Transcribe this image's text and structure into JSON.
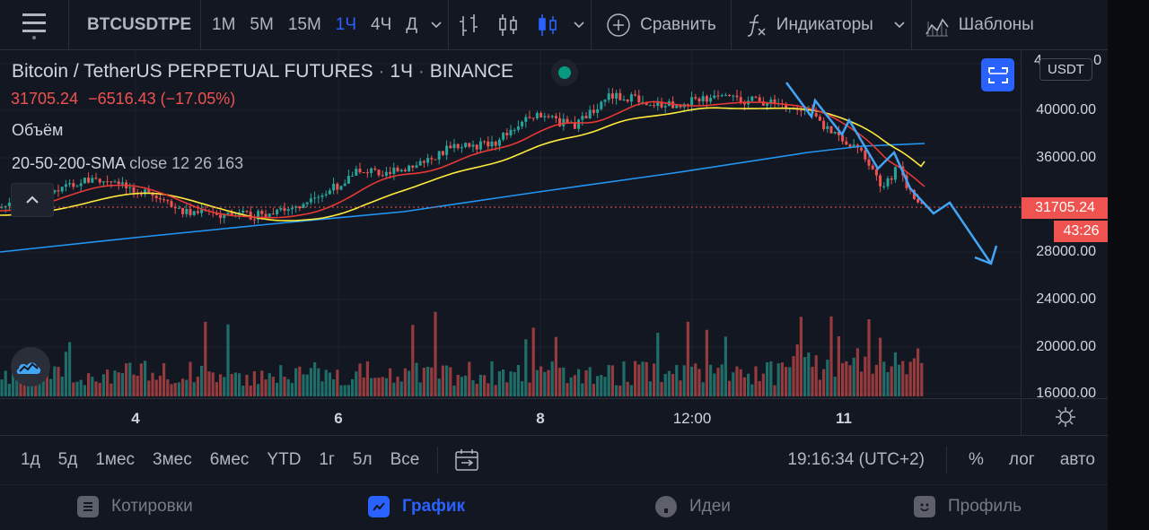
{
  "toolbar": {
    "symbol": "BTCUSDTPE",
    "timeframes": [
      "1М",
      "5М",
      "15М",
      "1Ч",
      "4Ч",
      "Д"
    ],
    "active_timeframe": "1Ч",
    "compare_label": "Сравнить",
    "indicators_label": "Индикаторы",
    "templates_label": "Шаблоны"
  },
  "legend": {
    "name": "Bitcoin / TetherUS PERPETUAL FUTURES",
    "interval": "1Ч",
    "exchange": "BINANCE",
    "dot": "·",
    "price": "31705.24",
    "change": "−6516.43 (−17.05%)",
    "volume_label": "Объём",
    "sma_name": "20-50-200-SMA",
    "sma_args": "close 12 26 163"
  },
  "price_axis": {
    "currency": "USDT",
    "ticks": [
      "40000.00",
      "36000.00",
      "28000.00",
      "24000.00",
      "20000.00",
      "16000.00"
    ],
    "top_partial": "4",
    "top_partial_2": "0",
    "last_price": "31705.24",
    "countdown": "43:26"
  },
  "time_axis": {
    "ticks": [
      "4",
      "6",
      "8",
      "12:00",
      "11"
    ]
  },
  "ranges": [
    "1д",
    "5д",
    "1мес",
    "3мес",
    "6мес",
    "YTD",
    "1г",
    "5л",
    "Все"
  ],
  "status": {
    "clock": "19:16:34 (UTC+2)",
    "percent": "%",
    "log": "лог",
    "auto": "авто"
  },
  "bottom_nav": {
    "quotes": "Котировки",
    "chart": "График",
    "ideas": "Идеи",
    "profile": "Профиль"
  },
  "colors": {
    "up": "#26a69a",
    "down": "#ef5350",
    "sma20": "#e53935",
    "sma50": "#ffeb3b",
    "sma200": "#2196f3",
    "accent": "#2962ff",
    "drawing": "#2196f3"
  }
}
